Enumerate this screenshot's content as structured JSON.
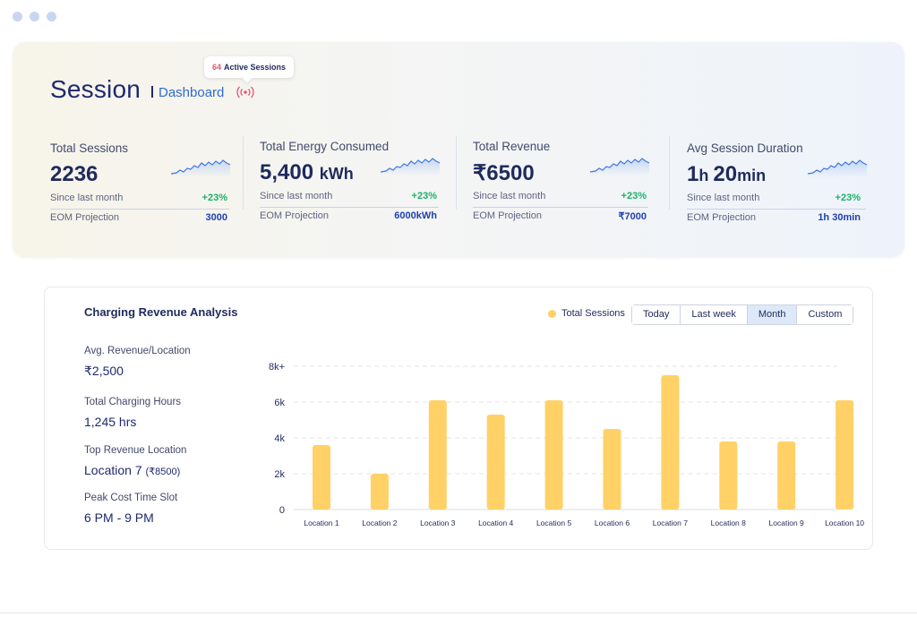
{
  "header": {
    "active_badge": {
      "count": "64",
      "label": "Active Sessions"
    },
    "title": "Session",
    "subtitle": "Dashboard",
    "live_icon": "broadcast-icon"
  },
  "stats": [
    {
      "label": "Total Sessions",
      "value": "2236",
      "unit": "",
      "since_label": "Since last month",
      "delta": "+23%",
      "eom_label": "EOM Projection",
      "projection": "3000"
    },
    {
      "label": "Total Energy Consumed",
      "value": "5,400",
      "unit": "kWh",
      "since_label": "Since last month",
      "delta": "+23%",
      "eom_label": "EOM Projection",
      "projection": "6000kWh"
    },
    {
      "label": "Total Revenue",
      "value": "₹6500",
      "unit": "",
      "since_label": "Since last month",
      "delta": "+23%",
      "eom_label": "EOM Projection",
      "projection": "₹7000"
    },
    {
      "label": "Avg Session Duration",
      "value_parts": [
        "1",
        "h ",
        "20",
        "min"
      ],
      "since_label": "Since last month",
      "delta": "+23%",
      "eom_label": "EOM Projection",
      "projection": "1h 30min"
    }
  ],
  "analysis": {
    "title": "Charging Revenue Analysis",
    "legend_label": "Total Sessions",
    "ranges": [
      "Today",
      "Last week",
      "Month",
      "Custom"
    ],
    "active_range": "Month",
    "metrics": [
      {
        "label": "Avg. Revenue/Location",
        "value": "₹2,500",
        "note": ""
      },
      {
        "label": "Total Charging Hours",
        "value": "1,245 hrs",
        "note": ""
      },
      {
        "label": "Top Revenue Location",
        "value": "Location 7",
        "note": "(₹8500)"
      },
      {
        "label": "Peak Cost Time Slot",
        "value": "6 PM - 9 PM",
        "note": ""
      }
    ]
  },
  "colors": {
    "bar": "#ffd166",
    "accent_blue": "#1f3fb0",
    "delta_green": "#1bb26b",
    "alert_red": "#e9546b"
  },
  "chart_data": {
    "type": "bar",
    "categories": [
      "Location 1",
      "Location 2",
      "Location 3",
      "Location 4",
      "Location 5",
      "Location 6",
      "Location 7",
      "Location 8",
      "Location 9",
      "Location 10"
    ],
    "series": [
      {
        "name": "Total Sessions",
        "values": [
          3600,
          2000,
          6100,
          5300,
          6100,
          4500,
          7500,
          3800,
          3800,
          6100
        ]
      }
    ],
    "yticks": [
      "0",
      "2k",
      "4k",
      "6k",
      "8k+"
    ],
    "ylim": [
      0,
      8000
    ],
    "grid": true
  }
}
